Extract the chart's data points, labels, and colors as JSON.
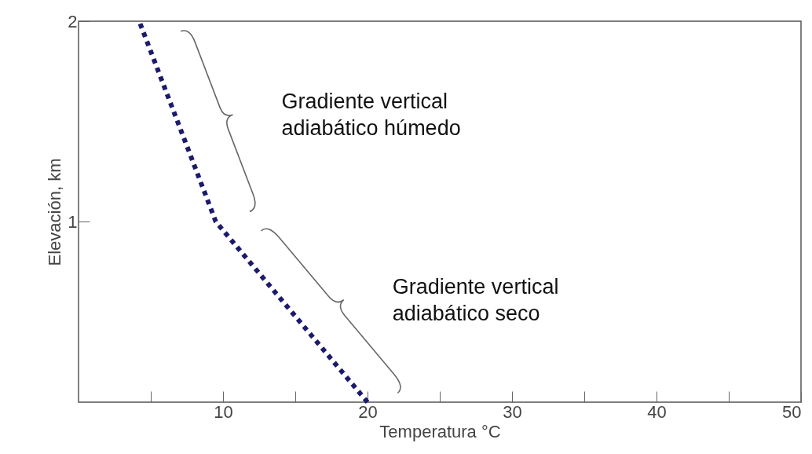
{
  "chart_data": {
    "type": "line",
    "xlabel": "Temperatura °C",
    "ylabel": "Elevación, km",
    "x": [
      20,
      9.5,
      4.2
    ],
    "series": [
      {
        "color": "#1c1a6b",
        "values": [
          0.1,
          1,
          2
        ]
      }
    ],
    "xlim": [
      0,
      50
    ],
    "ylim": [
      0.1,
      2
    ],
    "xticks": [
      {
        "value": 5,
        "label": null
      },
      10,
      {
        "value": 15,
        "label": null
      },
      20,
      {
        "value": 25,
        "label": null
      },
      30,
      {
        "value": 35,
        "label": null
      },
      40,
      {
        "value": 45,
        "label": null
      },
      50
    ],
    "yticks": [
      1,
      2
    ],
    "line_style": "dotted",
    "grid": false,
    "annotations": [
      "Gradiente vertical\nadiabático húmedo",
      "Gradiente vertical\nadiabático seco"
    ]
  }
}
